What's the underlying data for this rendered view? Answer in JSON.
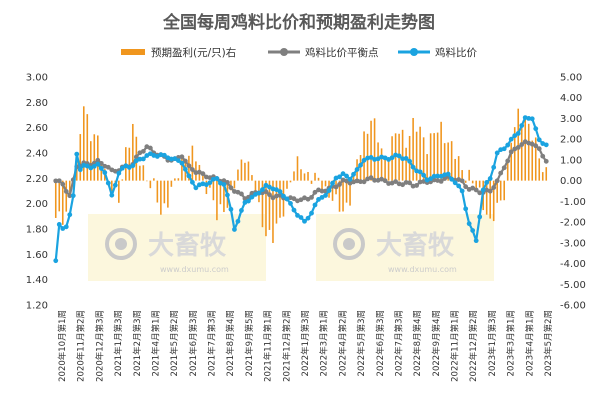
{
  "chart_data": {
    "type": "bar+line",
    "title": "全国每周鸡料比价和预期盈利走势图",
    "legend": {
      "position": "top",
      "entries": [
        "预期盈利(元/只)右",
        "鸡料比价平衡点",
        "鸡料比价"
      ]
    },
    "colors": {
      "profit": "#f0961e",
      "balance": "#7f7f7f",
      "ratio": "#1aa3e0"
    },
    "y_left": {
      "range": [
        1.2,
        3.0
      ],
      "ticks": [
        "3.00",
        "2.80",
        "2.60",
        "2.40",
        "2.20",
        "2.00",
        "1.80",
        "1.60",
        "1.40",
        "1.20"
      ]
    },
    "y_right": {
      "range": [
        -6.0,
        5.0
      ],
      "ticks": [
        "5.00",
        "4.00",
        "3.00",
        "2.00",
        "1.00",
        "0.00",
        "-1.00",
        "-2.00",
        "-3.00",
        "-4.00",
        "-5.00",
        "-6.00"
      ]
    },
    "x_labels": [
      "2020年10月第1周",
      "2020年11月第2周",
      "2020年12月第3周",
      "2021年1月第3周",
      "2021年2月第3周",
      "2021年4月第1周",
      "2021年5月第2周",
      "2021年6月第3周",
      "2021年7月第3周",
      "2021年8月第4周",
      "2021年9月第5周",
      "2021年11月第1周",
      "2021年12月第2周",
      "2022年1月第3周",
      "2022年3月第1周",
      "2022年4月第2周",
      "2022年5月第3周",
      "2022年6月第3周",
      "2022年7月第3周",
      "2022年8月第4周",
      "2022年9月第4周",
      "2022年11月第1周",
      "2022年12月第2周",
      "2023年1月第3周",
      "2023年3月第1周",
      "2023年4月第1周",
      "2023年5月第2周"
    ],
    "weeks": 141,
    "profit_keyframes": [
      [
        0,
        -2.0
      ],
      [
        3,
        -1.5
      ],
      [
        6,
        0.8
      ],
      [
        8,
        3.9
      ],
      [
        10,
        2.2
      ],
      [
        12,
        1.8
      ],
      [
        14,
        0.5
      ],
      [
        16,
        -0.3
      ],
      [
        18,
        -1.0
      ],
      [
        20,
        1.5
      ],
      [
        22,
        2.5
      ],
      [
        24,
        1.0
      ],
      [
        26,
        0.2
      ],
      [
        28,
        -0.4
      ],
      [
        30,
        -1.6
      ],
      [
        32,
        -0.8
      ],
      [
        34,
        -0.2
      ],
      [
        36,
        0.8
      ],
      [
        38,
        1.5
      ],
      [
        40,
        1.0
      ],
      [
        42,
        0.3
      ],
      [
        44,
        -0.5
      ],
      [
        46,
        -1.8
      ],
      [
        48,
        -1.2
      ],
      [
        50,
        -0.8
      ],
      [
        52,
        0.3
      ],
      [
        54,
        1.4
      ],
      [
        56,
        0.2
      ],
      [
        58,
        -1.5
      ],
      [
        60,
        -2.4
      ],
      [
        62,
        -2.8
      ],
      [
        64,
        -2.0
      ],
      [
        66,
        -0.5
      ],
      [
        68,
        0.5
      ],
      [
        70,
        0.8
      ],
      [
        72,
        0.3
      ],
      [
        74,
        0.0
      ],
      [
        76,
        -0.2
      ],
      [
        78,
        -0.6
      ],
      [
        80,
        -1.2
      ],
      [
        82,
        -1.4
      ],
      [
        84,
        -0.8
      ],
      [
        86,
        0.8
      ],
      [
        88,
        2.2
      ],
      [
        90,
        3.0
      ],
      [
        92,
        2.0
      ],
      [
        94,
        1.0
      ],
      [
        96,
        1.8
      ],
      [
        98,
        2.4
      ],
      [
        100,
        2.0
      ],
      [
        102,
        2.6
      ],
      [
        104,
        2.4
      ],
      [
        106,
        1.8
      ],
      [
        108,
        2.2
      ],
      [
        110,
        2.5
      ],
      [
        112,
        2.0
      ],
      [
        114,
        1.2
      ],
      [
        116,
        0.5
      ],
      [
        118,
        0.3
      ],
      [
        120,
        -0.5
      ],
      [
        122,
        -1.0
      ],
      [
        124,
        -2.0
      ],
      [
        126,
        -1.5
      ],
      [
        128,
        -0.5
      ],
      [
        130,
        2.0
      ],
      [
        132,
        3.0
      ],
      [
        134,
        3.2
      ],
      [
        136,
        2.2
      ],
      [
        138,
        1.0
      ],
      [
        140,
        0.5
      ]
    ],
    "ratio_keyframes": [
      [
        0,
        1.55
      ],
      [
        1,
        1.82
      ],
      [
        2,
        1.8
      ],
      [
        3,
        1.82
      ],
      [
        4,
        1.9
      ],
      [
        5,
        2.05
      ],
      [
        6,
        2.4
      ],
      [
        7,
        2.28
      ],
      [
        8,
        2.3
      ],
      [
        10,
        2.3
      ],
      [
        12,
        2.3
      ],
      [
        14,
        2.25
      ],
      [
        16,
        2.05
      ],
      [
        18,
        2.25
      ],
      [
        20,
        2.3
      ],
      [
        22,
        2.31
      ],
      [
        24,
        2.35
      ],
      [
        26,
        2.37
      ],
      [
        28,
        2.38
      ],
      [
        30,
        2.38
      ],
      [
        32,
        2.38
      ],
      [
        34,
        2.35
      ],
      [
        36,
        2.33
      ],
      [
        38,
        2.2
      ],
      [
        40,
        2.13
      ],
      [
        42,
        2.15
      ],
      [
        44,
        2.18
      ],
      [
        46,
        2.2
      ],
      [
        48,
        2.15
      ],
      [
        50,
        1.95
      ],
      [
        51,
        1.8
      ],
      [
        52,
        1.85
      ],
      [
        54,
        2.02
      ],
      [
        56,
        2.05
      ],
      [
        58,
        2.1
      ],
      [
        60,
        2.13
      ],
      [
        62,
        2.12
      ],
      [
        64,
        2.08
      ],
      [
        66,
        2.05
      ],
      [
        68,
        1.95
      ],
      [
        70,
        1.9
      ],
      [
        71,
        1.85
      ],
      [
        72,
        1.88
      ],
      [
        74,
        1.98
      ],
      [
        76,
        2.05
      ],
      [
        78,
        2.1
      ],
      [
        80,
        2.22
      ],
      [
        82,
        2.23
      ],
      [
        84,
        2.2
      ],
      [
        86,
        2.25
      ],
      [
        88,
        2.35
      ],
      [
        90,
        2.36
      ],
      [
        92,
        2.37
      ],
      [
        94,
        2.36
      ],
      [
        96,
        2.36
      ],
      [
        98,
        2.37
      ],
      [
        100,
        2.35
      ],
      [
        102,
        2.3
      ],
      [
        104,
        2.25
      ],
      [
        106,
        2.2
      ],
      [
        108,
        2.2
      ],
      [
        110,
        2.22
      ],
      [
        112,
        2.22
      ],
      [
        114,
        2.18
      ],
      [
        116,
        2.1
      ],
      [
        118,
        1.85
      ],
      [
        120,
        1.7
      ],
      [
        122,
        2.1
      ],
      [
        124,
        2.2
      ],
      [
        126,
        2.4
      ],
      [
        128,
        2.45
      ],
      [
        130,
        2.5
      ],
      [
        132,
        2.56
      ],
      [
        134,
        2.66
      ],
      [
        136,
        2.68
      ],
      [
        138,
        2.5
      ],
      [
        140,
        2.48
      ]
    ],
    "balance_keyframes": [
      [
        0,
        2.18
      ],
      [
        2,
        2.15
      ],
      [
        4,
        2.05
      ],
      [
        6,
        2.3
      ],
      [
        8,
        2.32
      ],
      [
        10,
        2.32
      ],
      [
        12,
        2.33
      ],
      [
        14,
        2.3
      ],
      [
        16,
        2.25
      ],
      [
        18,
        2.27
      ],
      [
        20,
        2.3
      ],
      [
        22,
        2.32
      ],
      [
        24,
        2.4
      ],
      [
        26,
        2.44
      ],
      [
        28,
        2.4
      ],
      [
        30,
        2.38
      ],
      [
        32,
        2.36
      ],
      [
        34,
        2.35
      ],
      [
        36,
        2.38
      ],
      [
        38,
        2.28
      ],
      [
        40,
        2.25
      ],
      [
        42,
        2.23
      ],
      [
        44,
        2.22
      ],
      [
        46,
        2.2
      ],
      [
        48,
        2.18
      ],
      [
        50,
        2.12
      ],
      [
        52,
        2.08
      ],
      [
        54,
        2.05
      ],
      [
        56,
        2.08
      ],
      [
        58,
        2.1
      ],
      [
        60,
        2.08
      ],
      [
        62,
        2.05
      ],
      [
        64,
        2.05
      ],
      [
        66,
        2.05
      ],
      [
        68,
        2.04
      ],
      [
        70,
        2.04
      ],
      [
        72,
        2.03
      ],
      [
        74,
        2.08
      ],
      [
        76,
        2.1
      ],
      [
        78,
        2.12
      ],
      [
        80,
        2.15
      ],
      [
        82,
        2.18
      ],
      [
        84,
        2.17
      ],
      [
        86,
        2.16
      ],
      [
        88,
        2.18
      ],
      [
        90,
        2.2
      ],
      [
        92,
        2.2
      ],
      [
        94,
        2.18
      ],
      [
        96,
        2.16
      ],
      [
        98,
        2.15
      ],
      [
        100,
        2.16
      ],
      [
        102,
        2.15
      ],
      [
        104,
        2.17
      ],
      [
        106,
        2.18
      ],
      [
        108,
        2.17
      ],
      [
        110,
        2.18
      ],
      [
        112,
        2.2
      ],
      [
        114,
        2.2
      ],
      [
        116,
        2.18
      ],
      [
        118,
        2.12
      ],
      [
        120,
        2.1
      ],
      [
        122,
        2.08
      ],
      [
        124,
        2.1
      ],
      [
        126,
        2.18
      ],
      [
        128,
        2.3
      ],
      [
        130,
        2.4
      ],
      [
        132,
        2.45
      ],
      [
        134,
        2.47
      ],
      [
        136,
        2.48
      ],
      [
        138,
        2.43
      ],
      [
        140,
        2.35
      ]
    ],
    "watermark": {
      "brand": "大畜牧",
      "url": "www.dxumu.com"
    }
  }
}
